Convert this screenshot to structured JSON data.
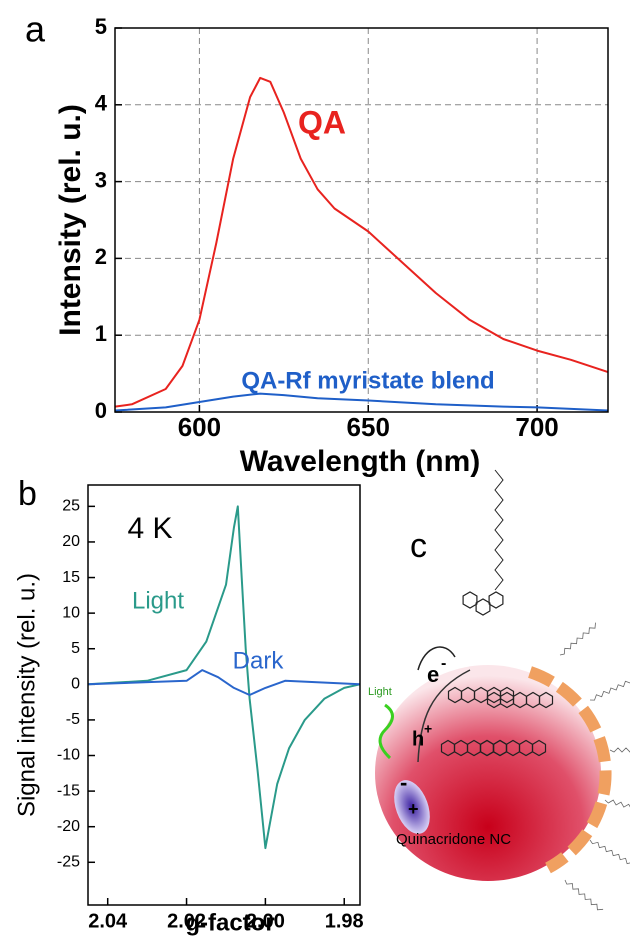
{
  "chart_data": [
    {
      "type": "line",
      "panel_label": "a",
      "xlabel": "Wavelength (nm)",
      "ylabel": "Intensity  (rel. u.)",
      "xlim": [
        575,
        721
      ],
      "xticks": [
        600,
        650,
        700
      ],
      "ylim": [
        0,
        5
      ],
      "yticks": [
        0,
        1,
        2,
        3,
        4,
        5
      ],
      "grid": true,
      "series": [
        {
          "name": "QA",
          "color": "#e8231f",
          "x": [
            575,
            580,
            590,
            595,
            600,
            605,
            610,
            615,
            618,
            621,
            625,
            630,
            635,
            640,
            645,
            650,
            655,
            660,
            665,
            670,
            680,
            690,
            700,
            710,
            721
          ],
          "values": [
            0.07,
            0.1,
            0.3,
            0.6,
            1.2,
            2.2,
            3.3,
            4.1,
            4.35,
            4.3,
            3.9,
            3.3,
            2.9,
            2.65,
            2.5,
            2.35,
            2.15,
            1.95,
            1.75,
            1.55,
            1.2,
            0.95,
            0.8,
            0.68,
            0.52
          ]
        },
        {
          "name": "QA-Rf myristate blend",
          "color": "#1f5fc8",
          "x": [
            575,
            590,
            600,
            610,
            618,
            625,
            635,
            650,
            670,
            690,
            700,
            721
          ],
          "values": [
            0.02,
            0.06,
            0.13,
            0.2,
            0.24,
            0.22,
            0.18,
            0.15,
            0.1,
            0.07,
            0.06,
            0.02
          ]
        }
      ]
    },
    {
      "type": "line",
      "panel_label": "b",
      "xlabel": "g-factor",
      "ylabel": "Signal intensity  (rel. u.)",
      "annotation": "4 K",
      "xlim": [
        2.045,
        1.976
      ],
      "xticks": [
        2.04,
        2.02,
        {
          "value": 2,
          "label": "2.00"
        },
        1.98
      ],
      "ylim": [
        -31,
        28
      ],
      "yticks": [
        -25,
        -20,
        -15,
        -10,
        -5,
        0,
        5,
        10,
        15,
        20,
        25
      ],
      "grid": false,
      "series": [
        {
          "name": "Light",
          "color": "#2a9a8a",
          "x": [
            2.045,
            2.03,
            2.02,
            2.015,
            2.01,
            2.008,
            2.007,
            2.006,
            2.005,
            2.004,
            2.002,
            2.0,
            1.999,
            1.997,
            1.994,
            1.99,
            1.985,
            1.98,
            1.976
          ],
          "values": [
            0,
            0.5,
            2,
            6,
            14,
            22,
            25,
            15,
            5,
            -2,
            -12,
            -23,
            -20,
            -14,
            -9,
            -5,
            -2,
            -0.5,
            0
          ]
        },
        {
          "name": "Dark",
          "color": "#2a66cc",
          "x": [
            2.045,
            2.02,
            2.016,
            2.012,
            2.008,
            2.004,
            2.0,
            1.995,
            1.976
          ],
          "values": [
            0,
            0.5,
            2,
            1,
            -0.5,
            -1.5,
            -0.5,
            0.5,
            0
          ]
        }
      ]
    }
  ],
  "diagram": {
    "panel_label": "c",
    "electron": {
      "symbol": "e",
      "charge": "-"
    },
    "hole": {
      "symbol": "h",
      "charge": "+"
    },
    "light": "Light",
    "exciton": {
      "minus": "-",
      "plus": "+"
    },
    "particle": "Quinacridone NC"
  }
}
